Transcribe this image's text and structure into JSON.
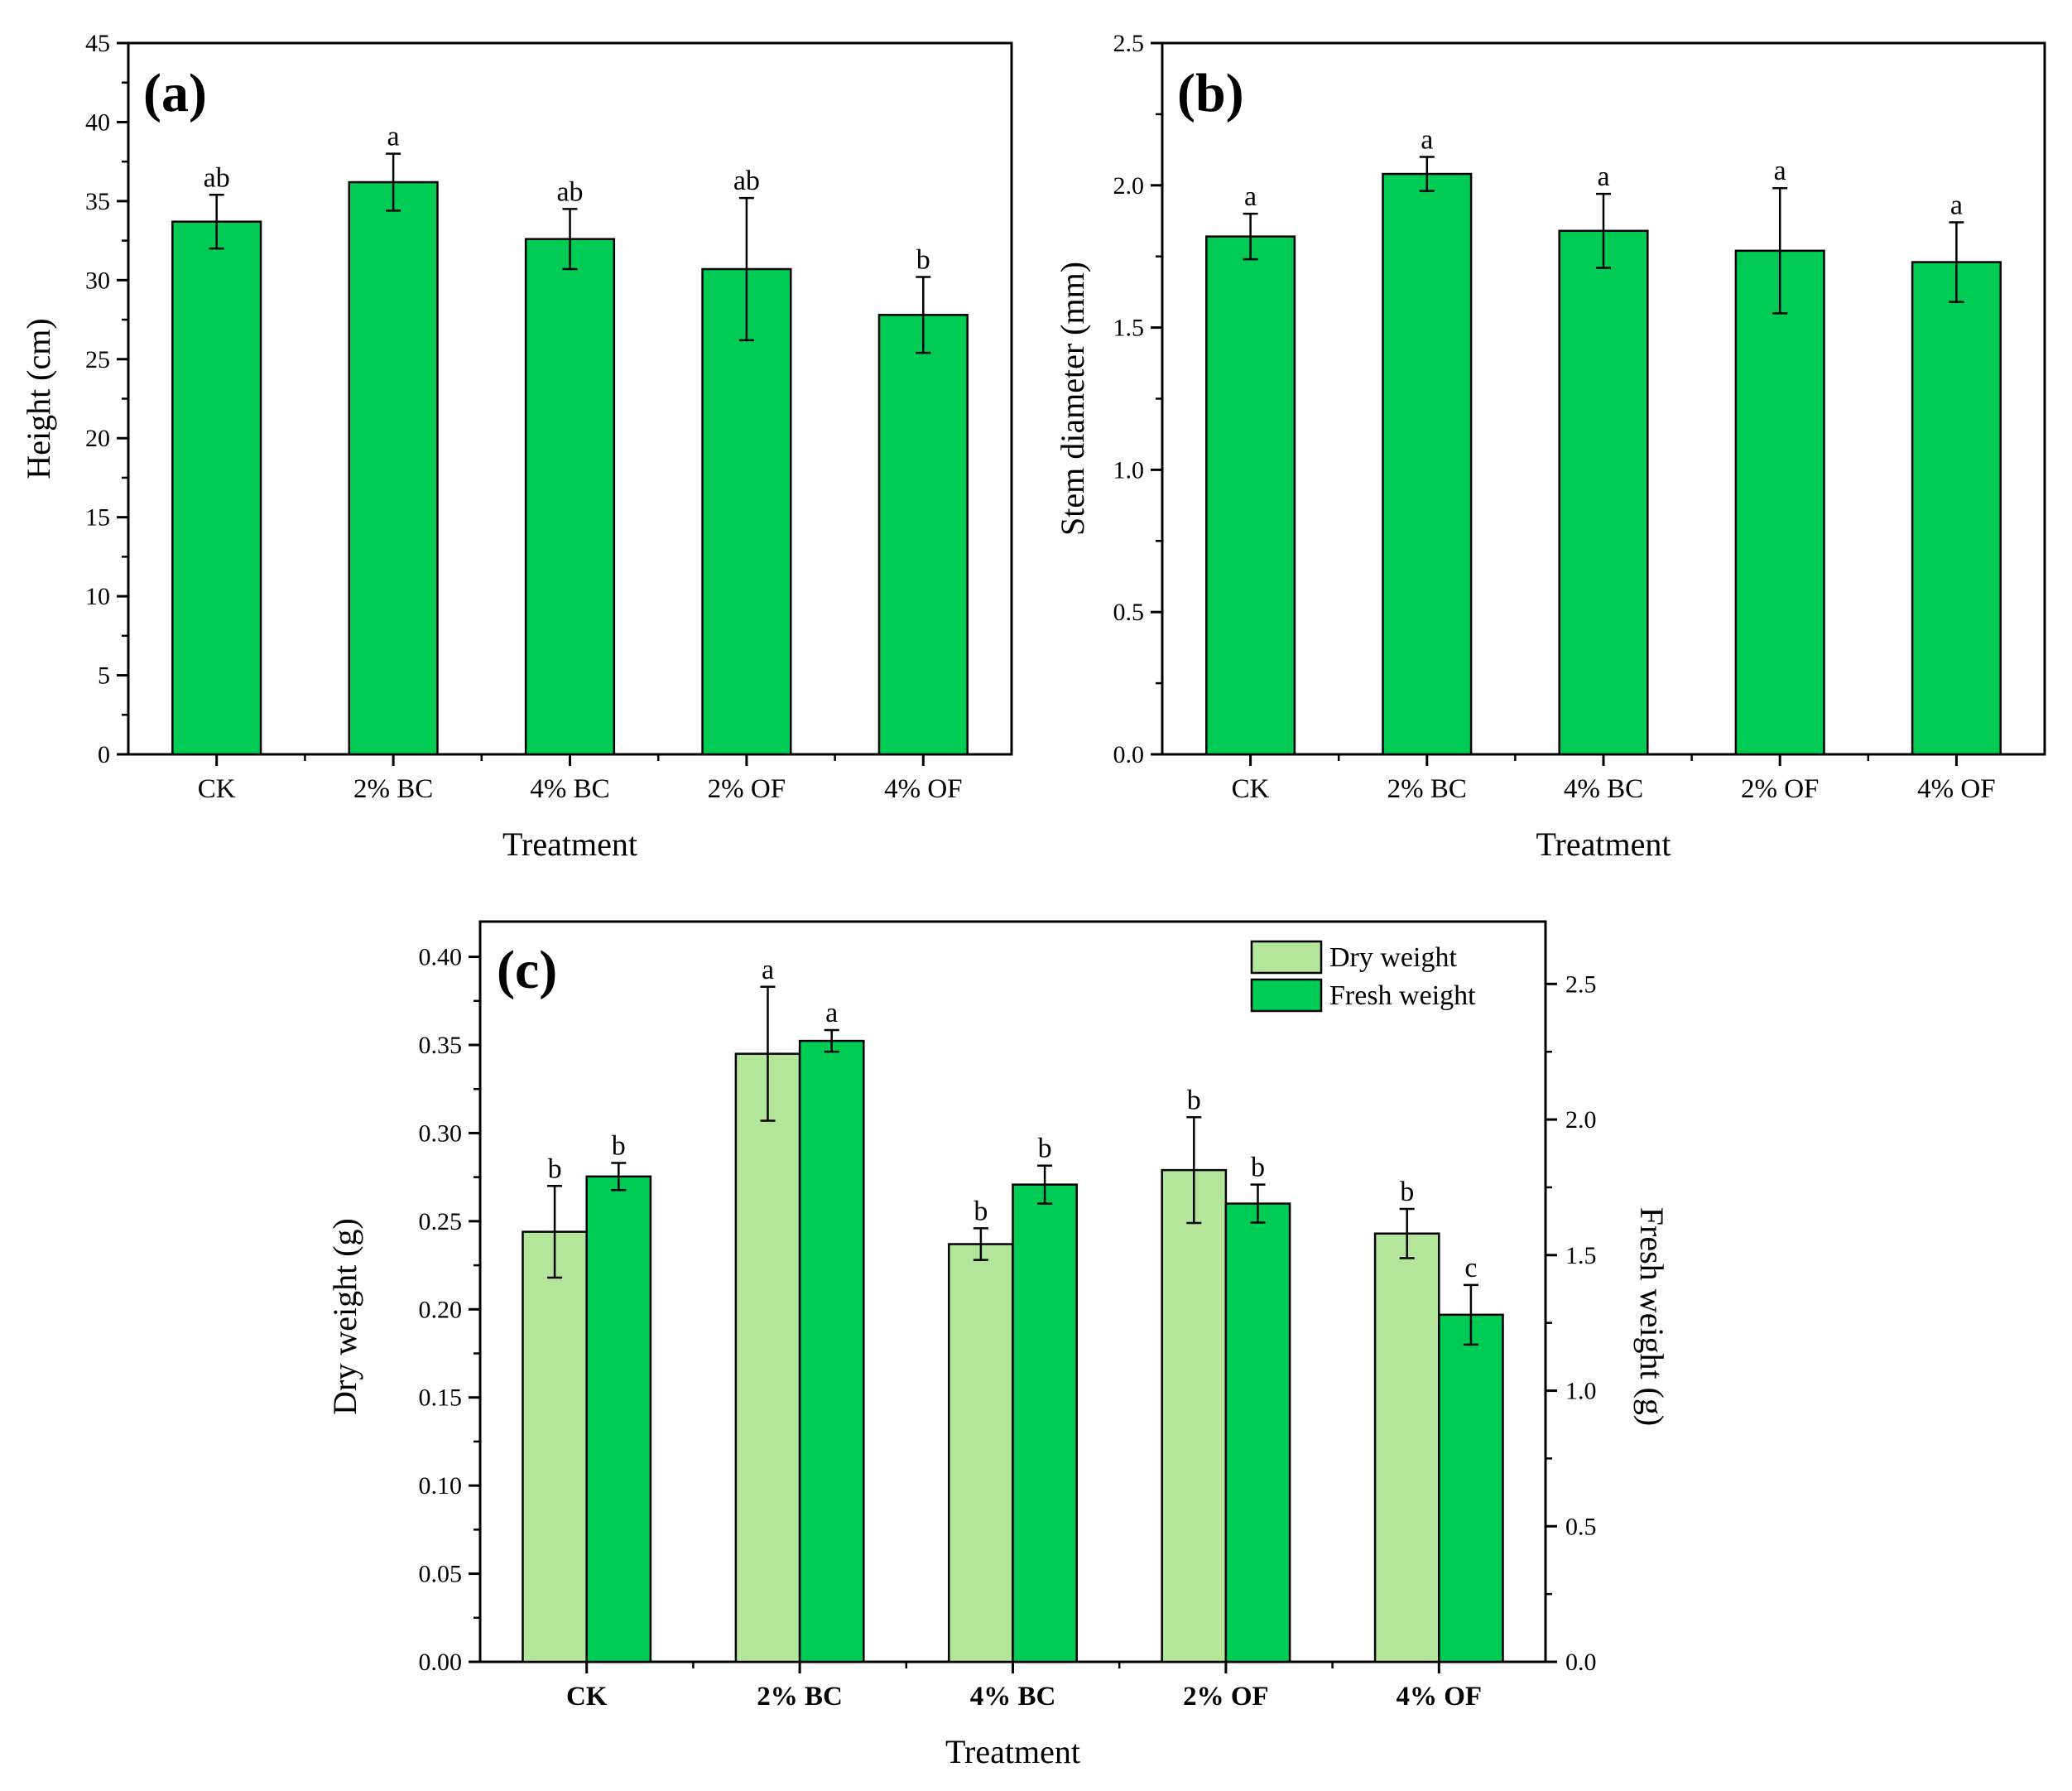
{
  "chart_data": [
    {
      "type": "bar",
      "panel": "(a)",
      "categories": [
        "CK",
        "2% BC",
        "4% BC",
        "2% OF",
        "4% OF"
      ],
      "values": [
        33.7,
        36.2,
        32.6,
        30.7,
        27.8
      ],
      "errors": [
        1.7,
        1.8,
        1.9,
        4.5,
        2.4
      ],
      "significance": [
        "ab",
        "a",
        "ab",
        "ab",
        "b"
      ],
      "xlabel": "Treatment",
      "ylabel": "Height (cm)",
      "ylim": [
        0,
        45
      ],
      "yticks": [
        "0",
        "5",
        "10",
        "15",
        "20",
        "25",
        "30",
        "35",
        "40",
        "45"
      ],
      "color": "#00cc55"
    },
    {
      "type": "bar",
      "panel": "(b)",
      "categories": [
        "CK",
        "2% BC",
        "4% BC",
        "2% OF",
        "4% OF"
      ],
      "values": [
        1.82,
        2.04,
        1.84,
        1.77,
        1.73
      ],
      "errors": [
        0.08,
        0.06,
        0.13,
        0.22,
        0.14
      ],
      "significance": [
        "a",
        "a",
        "a",
        "a",
        "a"
      ],
      "xlabel": "Treatment",
      "ylabel": "Stem diameter (mm)",
      "ylim": [
        0,
        2.5
      ],
      "yticks": [
        "0.0",
        "0.5",
        "1.0",
        "1.5",
        "2.0",
        "2.5"
      ],
      "color": "#00cc55"
    },
    {
      "type": "bar",
      "panel": "(c)",
      "categories": [
        "CK",
        "2% BC",
        "4% BC",
        "2% OF",
        "4% OF"
      ],
      "series": [
        {
          "name": "Dry weight",
          "axis": "left",
          "values": [
            0.244,
            0.345,
            0.237,
            0.279,
            0.243
          ],
          "errors": [
            0.026,
            0.038,
            0.009,
            0.03,
            0.014
          ],
          "significance": [
            "b",
            "a",
            "b",
            "b",
            "b"
          ],
          "color": "#b3e69b"
        },
        {
          "name": "Fresh weight",
          "axis": "right",
          "values": [
            1.79,
            2.29,
            1.76,
            1.69,
            1.28
          ],
          "errors": [
            0.05,
            0.04,
            0.07,
            0.07,
            0.11
          ],
          "significance": [
            "b",
            "a",
            "b",
            "b",
            "c"
          ],
          "color": "#00cc55"
        }
      ],
      "xlabel": "Treatment",
      "ylabel_left": "Dry weight (g)",
      "ylabel_right": "Fresh weight (g)",
      "ylim_left": [
        0,
        0.42
      ],
      "ylim_right": [
        0,
        2.73
      ],
      "yticks_left": [
        "0.00",
        "0.05",
        "0.10",
        "0.15",
        "0.20",
        "0.25",
        "0.30",
        "0.35",
        "0.40"
      ],
      "yticks_right": [
        "0.0",
        "0.5",
        "1.0",
        "1.5",
        "2.0",
        "2.5"
      ],
      "legend_placement": "top-right"
    }
  ]
}
